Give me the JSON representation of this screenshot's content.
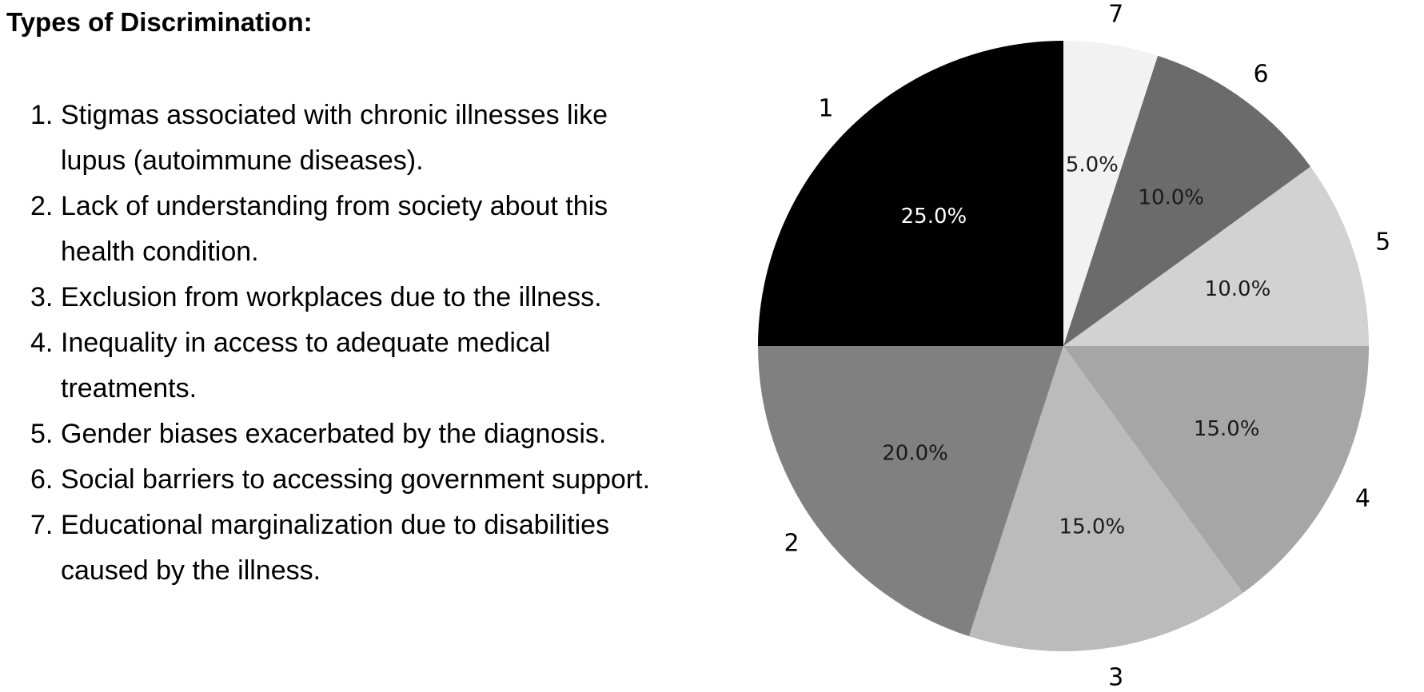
{
  "heading": "Types of Discrimination:",
  "list_items": [
    {
      "number": "1.",
      "text": "Stigmas associated with chronic illnesses like lupus (autoimmune diseases)."
    },
    {
      "number": "2.",
      "text": "Lack of understanding from society about this health condition."
    },
    {
      "number": "3.",
      "text": "Exclusion from workplaces due to the illness."
    },
    {
      "number": "4.",
      "text": "Inequality in access to adequate medical treatments."
    },
    {
      "number": "5.",
      "text": "Gender biases exacerbated by the diagnosis."
    },
    {
      "number": "6.",
      "text": "Social barriers to accessing government support."
    },
    {
      "number": "7.",
      "text": "Educational marginalization due to disabilities caused by the illness."
    }
  ],
  "chart_data": {
    "type": "pie",
    "start_angle": 90,
    "direction": "counterclockwise",
    "slices": [
      {
        "label": "1",
        "value": 25.0,
        "percent_label": "25.0%",
        "color": "#000000",
        "text_color": "#ffffff"
      },
      {
        "label": "2",
        "value": 20.0,
        "percent_label": "20.0%",
        "color": "#808080",
        "text_color": "#1a1a1a"
      },
      {
        "label": "3",
        "value": 15.0,
        "percent_label": "15.0%",
        "color": "#bbbbbb",
        "text_color": "#1a1a1a"
      },
      {
        "label": "4",
        "value": 15.0,
        "percent_label": "15.0%",
        "color": "#a6a6a6",
        "text_color": "#1a1a1a"
      },
      {
        "label": "5",
        "value": 10.0,
        "percent_label": "10.0%",
        "color": "#d2d2d2",
        "text_color": "#1a1a1a"
      },
      {
        "label": "6",
        "value": 10.0,
        "percent_label": "10.0%",
        "color": "#6b6b6b",
        "text_color": "#1a1a1a"
      },
      {
        "label": "7",
        "value": 5.0,
        "percent_label": "5.0%",
        "color": "#f2f2f2",
        "text_color": "#1a1a1a"
      }
    ]
  }
}
